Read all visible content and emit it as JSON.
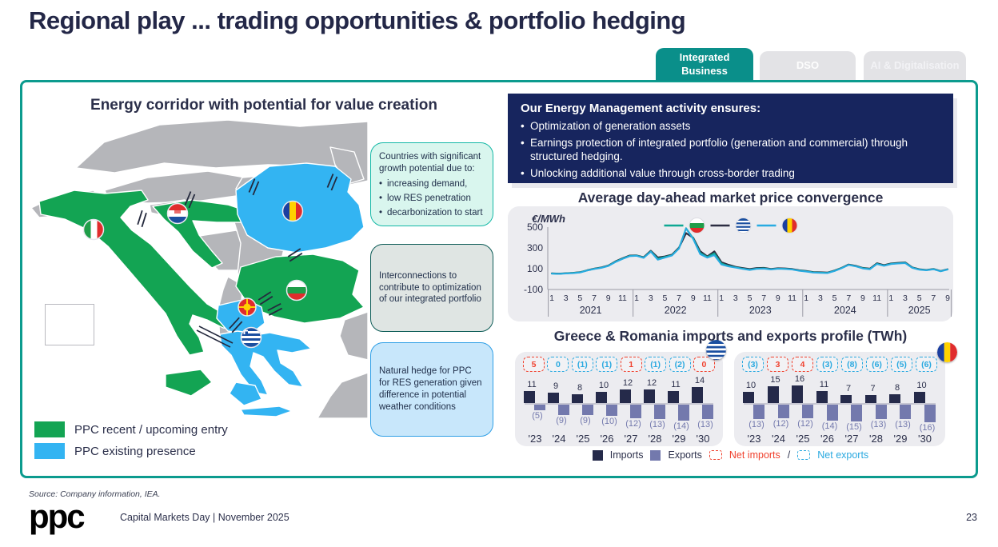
{
  "slide": {
    "title": "Regional play ... trading opportunities & portfolio hedging",
    "source": "Source: Company information, IEA.",
    "logo": "ppc",
    "footer": "Capital Markets Day | November 2025",
    "page_number": "23"
  },
  "tabs": [
    {
      "label": "Integrated Business",
      "active": true
    },
    {
      "label": "DSO",
      "active": false
    },
    {
      "label": "AI & Digitalisation",
      "active": false
    }
  ],
  "map_section": {
    "title": "Energy corridor with potential for value creation",
    "legend": [
      {
        "label": "PPC recent / upcoming entry",
        "color": "#13a453"
      },
      {
        "label": "PPC existing presence",
        "color": "#33b4f2"
      }
    ],
    "countries_recent_entry": [
      "Italy",
      "Croatia",
      "Bulgaria"
    ],
    "countries_existing_presence": [
      "Romania",
      "North Macedonia",
      "Greece"
    ]
  },
  "callouts": [
    {
      "title": "Countries with significant growth potential due to:",
      "bullets": [
        "increasing demand,",
        "low RES penetration",
        "decarbonization to start"
      ]
    },
    {
      "text": "Interconnections to contribute to optimization of our integrated portfolio"
    },
    {
      "text": "Natural hedge for PPC for RES generation given difference in potential weather conditions"
    }
  ],
  "energy_management": {
    "title": "Our Energy Management activity ensures:",
    "bullets": [
      "Optimization of generation assets",
      "Earnings  protection of integrated portfolio (generation and commercial) through structured hedging.",
      "Unlocking additional value through cross-border trading"
    ]
  },
  "imports_exports": {
    "title": "Greece & Romania imports and exports profile (TWh)",
    "legend": {
      "imports": "Imports",
      "exports": "Exports",
      "net_imports": "Net imports",
      "separator": "/",
      "net_exports": "Net exports"
    }
  },
  "chart_data": [
    {
      "type": "line",
      "title": "Average day-ahead market price convergence",
      "ylabel": "€/MWh",
      "yticks": [
        500,
        300,
        100,
        -100
      ],
      "ylim": [
        -100,
        520
      ],
      "x_groups": [
        {
          "year": "2021",
          "months": 12
        },
        {
          "year": "2022",
          "months": 12
        },
        {
          "year": "2023",
          "months": 12
        },
        {
          "year": "2024",
          "months": 12
        },
        {
          "year": "2025",
          "months": 9
        }
      ],
      "month_tick_labels": [
        1,
        3,
        5,
        7,
        9,
        11
      ],
      "legend_position": "top-center",
      "series": [
        {
          "name": "Bulgaria",
          "color": "#0ea893",
          "values": [
            54,
            51,
            55,
            59,
            65,
            84,
            99,
            110,
            128,
            167,
            197,
            223,
            226,
            207,
            268,
            196,
            212,
            230,
            298,
            490,
            392,
            252,
            212,
            248,
            150,
            128,
            113,
            101,
            91,
            101,
            104,
            95,
            101,
            99,
            94,
            82,
            75,
            65,
            62,
            60,
            80,
            106,
            138,
            125,
            105,
            97,
            148,
            130,
            147,
            152,
            157,
            110,
            92,
            86,
            96,
            76,
            93
          ]
        },
        {
          "name": "Greece",
          "color": "#2b2d42",
          "values": [
            55,
            52,
            56,
            60,
            66,
            85,
            100,
            112,
            130,
            170,
            200,
            226,
            228,
            210,
            272,
            208,
            218,
            235,
            302,
            442,
            398,
            268,
            218,
            266,
            162,
            138,
            118,
            106,
            96,
            106,
            108,
            98,
            104,
            102,
            97,
            85,
            78,
            68,
            65,
            62,
            82,
            108,
            140,
            128,
            108,
            100,
            152,
            134,
            150,
            156,
            160,
            112,
            95,
            88,
            98,
            78,
            95
          ]
        },
        {
          "name": "Romania",
          "color": "#29abe2",
          "values": [
            52,
            50,
            54,
            57,
            63,
            82,
            97,
            108,
            126,
            164,
            194,
            220,
            224,
            204,
            264,
            186,
            206,
            226,
            294,
            486,
            386,
            240,
            206,
            230,
            140,
            122,
            110,
            98,
            88,
            98,
            100,
            92,
            99,
            97,
            92,
            80,
            72,
            62,
            60,
            58,
            78,
            104,
            136,
            122,
            102,
            95,
            145,
            128,
            144,
            150,
            154,
            108,
            90,
            85,
            95,
            75,
            92
          ]
        }
      ]
    },
    {
      "type": "bar",
      "country": "Greece",
      "categories": [
        "'23",
        "'24",
        "'25",
        "'26",
        "'27",
        "'28",
        "'29",
        "'30"
      ],
      "imports": [
        11,
        9,
        8,
        10,
        12,
        12,
        11,
        14
      ],
      "exports": [
        5,
        9,
        9,
        10,
        12,
        13,
        14,
        13
      ],
      "net": [
        {
          "label": "5",
          "type": "import"
        },
        {
          "label": "0",
          "type": "export"
        },
        {
          "label": "(1)",
          "type": "export"
        },
        {
          "label": "(1)",
          "type": "export"
        },
        {
          "label": "1",
          "type": "import"
        },
        {
          "label": "(1)",
          "type": "export"
        },
        {
          "label": "(2)",
          "type": "export"
        },
        {
          "label": "0",
          "type": "import"
        }
      ]
    },
    {
      "type": "bar",
      "country": "Romania",
      "categories": [
        "'23",
        "'24",
        "'25",
        "'26",
        "'27",
        "'28",
        "'29",
        "'30"
      ],
      "imports": [
        10,
        15,
        16,
        11,
        7,
        7,
        8,
        10
      ],
      "exports": [
        13,
        12,
        12,
        14,
        15,
        13,
        13,
        16
      ],
      "net": [
        {
          "label": "(3)",
          "type": "export"
        },
        {
          "label": "3",
          "type": "import"
        },
        {
          "label": "4",
          "type": "import"
        },
        {
          "label": "(3)",
          "type": "export"
        },
        {
          "label": "(8)",
          "type": "export"
        },
        {
          "label": "(6)",
          "type": "export"
        },
        {
          "label": "(5)",
          "type": "export"
        },
        {
          "label": "(6)",
          "type": "export"
        }
      ]
    }
  ],
  "colors": {
    "accent_teal": "#0c9b8e",
    "navy": "#17255e",
    "map_green": "#13a453",
    "map_blue": "#33b4f2",
    "imports_bar": "#252a4a",
    "exports_bar": "#7379ad",
    "net_imports_red": "#f0422f",
    "net_exports_blue": "#2aa9e0"
  }
}
